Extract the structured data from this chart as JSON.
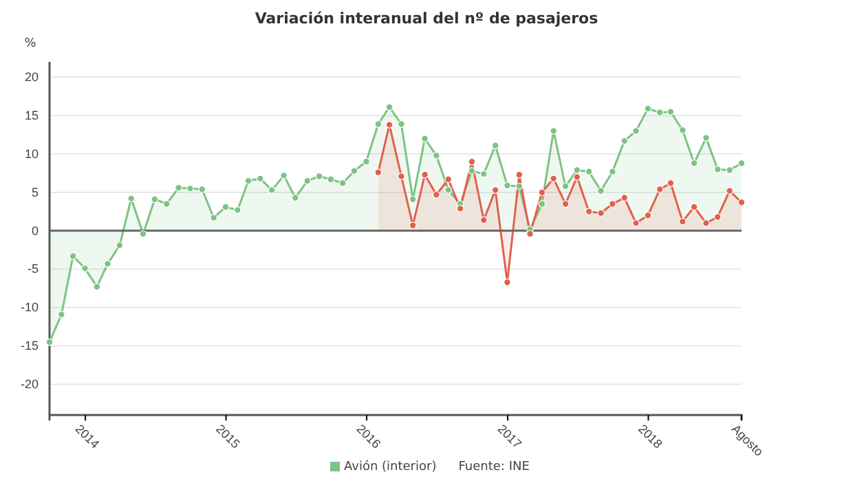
{
  "chart_data": {
    "type": "area",
    "title": "Variación interanual del nº de pasajeros",
    "ylabel": "%",
    "x": [
      "2013-09-30",
      "2013-10-31",
      "2013-11-30",
      "2013-12-31",
      "2014-01-31",
      "2014-02-28",
      "2014-03-31",
      "2014-04-30",
      "2014-05-31",
      "2014-06-30",
      "2014-07-31",
      "2014-08-31",
      "2014-09-30",
      "2014-10-31",
      "2014-11-30",
      "2014-12-31",
      "2015-01-31",
      "2015-02-28",
      "2015-03-31",
      "2015-04-30",
      "2015-05-31",
      "2015-06-30",
      "2015-07-31",
      "2015-08-31",
      "2015-09-30",
      "2015-10-31",
      "2015-11-30",
      "2015-12-31",
      "2016-01-31",
      "2016-02-29",
      "2016-03-31",
      "2016-04-30",
      "2016-05-31",
      "2016-06-30",
      "2016-07-31",
      "2016-08-31",
      "2016-09-30",
      "2016-10-31",
      "2016-11-30",
      "2016-12-31",
      "2017-01-31",
      "2017-02-28",
      "2017-03-31",
      "2017-04-30",
      "2017-05-31",
      "2017-06-30",
      "2017-07-31",
      "2017-08-31",
      "2017-09-30",
      "2017-10-31",
      "2017-11-30",
      "2017-12-31",
      "2018-01-31",
      "2018-02-28",
      "2018-03-31",
      "2018-04-30",
      "2018-05-31",
      "2018-06-30",
      "2018-07-31",
      "2018-08-31"
    ],
    "series": [
      {
        "name": "Avión (interior)",
        "color": "#7dc383",
        "values": [
          -14.5,
          -10.9,
          -3.3,
          -4.9,
          -7.3,
          -4.3,
          -1.9,
          4.2,
          -0.4,
          4.1,
          3.5,
          5.6,
          5.5,
          5.4,
          1.7,
          3.1,
          2.7,
          6.5,
          6.8,
          5.3,
          7.2,
          4.3,
          6.5,
          7.1,
          6.7,
          6.2,
          7.8,
          9.0,
          13.9,
          16.1,
          13.9,
          4.1,
          12.0,
          9.8,
          5.3,
          3.5,
          7.8,
          7.4,
          11.1,
          5.9,
          5.8,
          0.2,
          3.5,
          13.0,
          5.8,
          7.9,
          7.7,
          5.2,
          7.7,
          11.7,
          13.0,
          15.9,
          15.4,
          15.5,
          13.1,
          8.8,
          12.1,
          8.0,
          7.9,
          8.8
        ]
      },
      {
        "color": "#e0614e",
        "values": [
          null,
          null,
          null,
          null,
          null,
          null,
          null,
          null,
          null,
          null,
          null,
          null,
          null,
          null,
          null,
          null,
          null,
          null,
          null,
          null,
          null,
          null,
          null,
          null,
          null,
          null,
          null,
          null,
          7.6,
          13.8,
          7.1,
          0.7,
          7.3,
          4.7,
          6.7,
          2.9,
          9.0,
          1.4,
          5.3,
          -6.7,
          7.3,
          -0.4,
          5.0,
          6.8,
          3.5,
          7.0,
          2.5,
          2.3,
          3.5,
          4.3,
          1.0,
          2.0,
          5.4,
          6.2,
          1.2,
          3.1,
          1.0,
          1.8,
          5.2,
          3.7
        ]
      }
    ],
    "xlim": [
      "2013-09-30",
      "2018-08-31"
    ],
    "xticks": [
      {
        "value": "2014-01-01",
        "label": "2014"
      },
      {
        "value": "2015-01-01",
        "label": "2015"
      },
      {
        "value": "2016-01-01",
        "label": "2016"
      },
      {
        "value": "2017-01-01",
        "label": "2017"
      },
      {
        "value": "2018-01-01",
        "label": "2018"
      },
      {
        "value": "2018-08-31",
        "label": "Agosto"
      }
    ],
    "ylim": [
      -24,
      22
    ],
    "yticks": [
      -20,
      -15,
      -10,
      -5,
      0,
      5,
      10,
      15,
      20
    ],
    "ref_lines": [
      {
        "axis": "y",
        "value": 0,
        "color": "#666666"
      }
    ],
    "grid": "y",
    "marker": "circle",
    "line_style": "solid",
    "legend": "bottom",
    "annotations": [
      "Fuente: INE"
    ]
  }
}
